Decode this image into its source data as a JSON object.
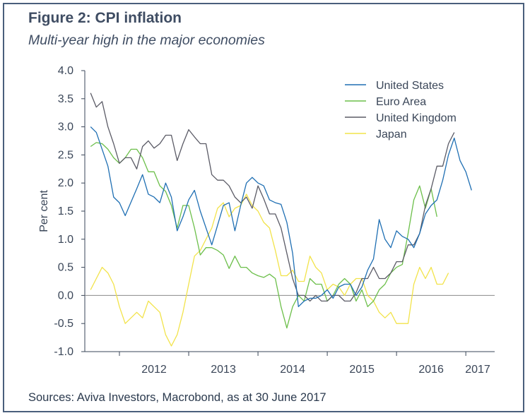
{
  "title": "Figure 2: CPI inflation",
  "subtitle": "Multi-year high in the major economies",
  "source": "Sources: Aviva Investors, Macrobond, as at 30 June 2017",
  "colors": {
    "frame": "#4a5f7c",
    "united_states": "#1f6fb3",
    "euro_area": "#6cbf4a",
    "united_kingdom": "#5b5b66",
    "japan": "#f2e34a",
    "zero_line": "#8a8a8a",
    "axis": "#3a4658"
  },
  "chart_data": {
    "type": "line",
    "xlabel": "",
    "ylabel": "Per cent",
    "ylim": [
      -1.0,
      4.0
    ],
    "yticks": [
      "4.0",
      "3.5",
      "3.0",
      "2.5",
      "2.0",
      "1.5",
      "1.0",
      "0.5",
      "0.0",
      "-0.5",
      "-1.0"
    ],
    "xticks": [
      "2012",
      "2013",
      "2014",
      "2015",
      "2016",
      "2017"
    ],
    "xlim": [
      "2011-07",
      "2017-06"
    ],
    "legend_position": "top-right",
    "zero_line": true,
    "grid": false,
    "series": [
      {
        "name": "United States",
        "color": "#1f6fb3",
        "points": [
          [
            "2011-08",
            3.0
          ],
          [
            "2011-09",
            2.9
          ],
          [
            "2011-11",
            2.3
          ],
          [
            "2011-12",
            1.75
          ],
          [
            "2012-01",
            1.65
          ],
          [
            "2012-02",
            1.42
          ],
          [
            "2012-04",
            1.9
          ],
          [
            "2012-05",
            2.15
          ],
          [
            "2012-06",
            1.8
          ],
          [
            "2012-07",
            1.75
          ],
          [
            "2012-08",
            1.65
          ],
          [
            "2012-09",
            2.0
          ],
          [
            "2012-10",
            1.75
          ],
          [
            "2012-11",
            1.15
          ],
          [
            "2012-12",
            1.4
          ],
          [
            "2013-01",
            1.7
          ],
          [
            "2013-02",
            1.87
          ],
          [
            "2013-03",
            1.5
          ],
          [
            "2013-05",
            0.9
          ],
          [
            "2013-06",
            1.25
          ],
          [
            "2013-07",
            1.6
          ],
          [
            "2013-08",
            1.65
          ],
          [
            "2013-09",
            1.15
          ],
          [
            "2013-10",
            1.6
          ],
          [
            "2013-11",
            2.0
          ],
          [
            "2013-12",
            2.1
          ],
          [
            "2014-01",
            2.0
          ],
          [
            "2014-02",
            1.95
          ],
          [
            "2014-03",
            1.7
          ],
          [
            "2014-04",
            1.65
          ],
          [
            "2014-05",
            1.62
          ],
          [
            "2014-06",
            1.3
          ],
          [
            "2014-07",
            0.75
          ],
          [
            "2014-08",
            -0.2
          ],
          [
            "2014-09",
            -0.1
          ],
          [
            "2014-10",
            -0.05
          ],
          [
            "2014-11",
            -0.05
          ],
          [
            "2014-12",
            0.0
          ],
          [
            "2015-01",
            0.1
          ],
          [
            "2015-02",
            -0.05
          ],
          [
            "2015-03",
            0.15
          ],
          [
            "2015-04",
            0.2
          ],
          [
            "2015-05",
            0.2
          ],
          [
            "2015-06",
            0.0
          ],
          [
            "2015-07",
            0.15
          ],
          [
            "2015-08",
            0.45
          ],
          [
            "2015-09",
            0.65
          ],
          [
            "2015-10",
            1.35
          ],
          [
            "2015-11",
            1.0
          ],
          [
            "2015-12",
            0.85
          ],
          [
            "2016-01",
            1.15
          ],
          [
            "2016-02",
            1.05
          ],
          [
            "2016-03",
            1.0
          ],
          [
            "2016-04",
            0.85
          ],
          [
            "2016-05",
            1.1
          ],
          [
            "2016-06",
            1.45
          ],
          [
            "2016-07",
            1.6
          ],
          [
            "2016-08",
            1.7
          ],
          [
            "2016-09",
            2.05
          ],
          [
            "2016-10",
            2.5
          ],
          [
            "2016-11",
            2.8
          ],
          [
            "2016-12",
            2.4
          ],
          [
            "2017-01",
            2.2
          ],
          [
            "2017-02",
            1.87
          ]
        ]
      },
      {
        "name": "Euro Area",
        "color": "#6cbf4a",
        "points": [
          [
            "2011-08",
            2.65
          ],
          [
            "2011-09",
            2.72
          ],
          [
            "2011-10",
            2.7
          ],
          [
            "2011-11",
            2.6
          ],
          [
            "2011-12",
            2.45
          ],
          [
            "2012-01",
            2.35
          ],
          [
            "2012-02",
            2.45
          ],
          [
            "2012-03",
            2.6
          ],
          [
            "2012-04",
            2.6
          ],
          [
            "2012-05",
            2.45
          ],
          [
            "2012-06",
            2.2
          ],
          [
            "2012-07",
            2.2
          ],
          [
            "2012-08",
            1.95
          ],
          [
            "2012-09",
            1.85
          ],
          [
            "2012-10",
            1.6
          ],
          [
            "2012-11",
            1.2
          ],
          [
            "2012-12",
            1.6
          ],
          [
            "2013-01",
            1.6
          ],
          [
            "2013-02",
            1.2
          ],
          [
            "2013-03",
            0.72
          ],
          [
            "2013-04",
            0.85
          ],
          [
            "2013-05",
            0.85
          ],
          [
            "2013-06",
            0.8
          ],
          [
            "2013-07",
            0.72
          ],
          [
            "2013-08",
            0.48
          ],
          [
            "2013-09",
            0.7
          ],
          [
            "2013-10",
            0.5
          ],
          [
            "2013-11",
            0.5
          ],
          [
            "2013-12",
            0.4
          ],
          [
            "2014-01",
            0.35
          ],
          [
            "2014-02",
            0.32
          ],
          [
            "2014-03",
            0.38
          ],
          [
            "2014-04",
            0.3
          ],
          [
            "2014-05",
            -0.2
          ],
          [
            "2014-06",
            -0.58
          ],
          [
            "2014-07",
            -0.2
          ],
          [
            "2014-08",
            0.0
          ],
          [
            "2014-09",
            -0.1
          ],
          [
            "2014-10",
            0.3
          ],
          [
            "2014-11",
            0.2
          ],
          [
            "2014-12",
            0.2
          ],
          [
            "2015-01",
            -0.1
          ],
          [
            "2015-02",
            0.0
          ],
          [
            "2015-03",
            0.2
          ],
          [
            "2015-04",
            0.3
          ],
          [
            "2015-05",
            0.2
          ],
          [
            "2015-06",
            -0.1
          ],
          [
            "2015-07",
            0.1
          ],
          [
            "2015-08",
            -0.2
          ],
          [
            "2015-09",
            -0.1
          ],
          [
            "2015-10",
            0.1
          ],
          [
            "2015-11",
            0.2
          ],
          [
            "2015-12",
            0.4
          ],
          [
            "2016-01",
            0.5
          ],
          [
            "2016-02",
            0.55
          ],
          [
            "2016-03",
            1.1
          ],
          [
            "2016-04",
            1.7
          ],
          [
            "2016-05",
            1.95
          ],
          [
            "2016-06",
            1.55
          ],
          [
            "2016-07",
            1.9
          ],
          [
            "2016-08",
            1.4
          ]
        ]
      },
      {
        "name": "United Kingdom",
        "color": "#5b5b66",
        "points": [
          [
            "2011-08",
            3.6
          ],
          [
            "2011-09",
            3.35
          ],
          [
            "2011-10",
            3.45
          ],
          [
            "2011-11",
            3.0
          ],
          [
            "2011-12",
            2.7
          ],
          [
            "2012-01",
            2.35
          ],
          [
            "2012-02",
            2.45
          ],
          [
            "2012-03",
            2.45
          ],
          [
            "2012-04",
            2.25
          ],
          [
            "2012-05",
            2.65
          ],
          [
            "2012-06",
            2.75
          ],
          [
            "2012-07",
            2.62
          ],
          [
            "2012-08",
            2.7
          ],
          [
            "2012-09",
            2.85
          ],
          [
            "2012-10",
            2.85
          ],
          [
            "2012-11",
            2.4
          ],
          [
            "2012-12",
            2.7
          ],
          [
            "2013-01",
            2.95
          ],
          [
            "2013-02",
            2.82
          ],
          [
            "2013-03",
            2.7
          ],
          [
            "2013-04",
            2.7
          ],
          [
            "2013-05",
            2.15
          ],
          [
            "2013-06",
            2.05
          ],
          [
            "2013-07",
            2.05
          ],
          [
            "2013-08",
            1.95
          ],
          [
            "2013-09",
            1.75
          ],
          [
            "2013-10",
            1.65
          ],
          [
            "2013-11",
            1.75
          ],
          [
            "2013-12",
            1.55
          ],
          [
            "2014-01",
            1.95
          ],
          [
            "2014-02",
            1.72
          ],
          [
            "2014-03",
            1.45
          ],
          [
            "2014-04",
            1.45
          ],
          [
            "2014-05",
            1.2
          ],
          [
            "2014-06",
            0.75
          ],
          [
            "2014-07",
            0.3
          ],
          [
            "2014-08",
            0.0
          ],
          [
            "2014-09",
            0.0
          ],
          [
            "2014-10",
            -0.1
          ],
          [
            "2014-11",
            0.0
          ],
          [
            "2014-12",
            -0.1
          ],
          [
            "2015-01",
            -0.1
          ],
          [
            "2015-02",
            0.0
          ],
          [
            "2015-03",
            0.0
          ],
          [
            "2015-04",
            -0.1
          ],
          [
            "2015-05",
            -0.1
          ],
          [
            "2015-06",
            0.05
          ],
          [
            "2015-07",
            0.3
          ],
          [
            "2015-08",
            0.3
          ],
          [
            "2015-09",
            0.5
          ],
          [
            "2015-10",
            0.3
          ],
          [
            "2015-11",
            0.3
          ],
          [
            "2015-12",
            0.4
          ],
          [
            "2016-01",
            0.6
          ],
          [
            "2016-02",
            0.6
          ],
          [
            "2016-03",
            0.9
          ],
          [
            "2016-04",
            0.9
          ],
          [
            "2016-05",
            1.1
          ],
          [
            "2016-06",
            1.6
          ],
          [
            "2016-07",
            1.9
          ],
          [
            "2016-08",
            2.3
          ],
          [
            "2016-09",
            2.3
          ],
          [
            "2016-10",
            2.7
          ],
          [
            "2016-11",
            2.9
          ]
        ]
      },
      {
        "name": "Japan",
        "color": "#f2e34a",
        "points": [
          [
            "2011-08",
            0.1
          ],
          [
            "2011-09",
            0.3
          ],
          [
            "2011-10",
            0.5
          ],
          [
            "2011-11",
            0.4
          ],
          [
            "2011-12",
            0.2
          ],
          [
            "2012-01",
            -0.2
          ],
          [
            "2012-02",
            -0.5
          ],
          [
            "2012-03",
            -0.4
          ],
          [
            "2012-04",
            -0.3
          ],
          [
            "2012-05",
            -0.4
          ],
          [
            "2012-06",
            -0.1
          ],
          [
            "2012-07",
            -0.2
          ],
          [
            "2012-08",
            -0.3
          ],
          [
            "2012-09",
            -0.7
          ],
          [
            "2012-10",
            -0.9
          ],
          [
            "2012-11",
            -0.7
          ],
          [
            "2012-12",
            -0.3
          ],
          [
            "2013-01",
            0.2
          ],
          [
            "2013-02",
            0.7
          ],
          [
            "2013-03",
            0.8
          ],
          [
            "2013-04",
            1.0
          ],
          [
            "2013-05",
            1.2
          ],
          [
            "2013-06",
            1.55
          ],
          [
            "2013-07",
            1.65
          ],
          [
            "2013-08",
            1.4
          ],
          [
            "2013-09",
            1.55
          ],
          [
            "2013-10",
            1.6
          ],
          [
            "2013-11",
            1.8
          ],
          [
            "2013-12",
            1.6
          ],
          [
            "2014-01",
            1.5
          ],
          [
            "2014-02",
            1.3
          ],
          [
            "2014-03",
            1.2
          ],
          [
            "2014-04",
            0.8
          ],
          [
            "2014-05",
            0.35
          ],
          [
            "2014-06",
            0.35
          ],
          [
            "2014-07",
            0.45
          ],
          [
            "2014-08",
            0.25
          ],
          [
            "2014-09",
            0.25
          ],
          [
            "2014-10",
            0.7
          ],
          [
            "2014-11",
            0.5
          ],
          [
            "2014-12",
            0.4
          ],
          [
            "2015-01",
            0.1
          ],
          [
            "2015-02",
            0.2
          ],
          [
            "2015-03",
            0.15
          ],
          [
            "2015-04",
            0.0
          ],
          [
            "2015-05",
            0.2
          ],
          [
            "2015-06",
            0.3
          ],
          [
            "2015-07",
            0.3
          ],
          [
            "2015-08",
            0.0
          ],
          [
            "2015-09",
            -0.1
          ],
          [
            "2015-10",
            -0.3
          ],
          [
            "2015-11",
            -0.4
          ],
          [
            "2015-12",
            -0.3
          ],
          [
            "2016-01",
            -0.5
          ],
          [
            "2016-02",
            -0.5
          ],
          [
            "2016-03",
            -0.5
          ],
          [
            "2016-04",
            0.2
          ],
          [
            "2016-05",
            0.5
          ],
          [
            "2016-06",
            0.3
          ],
          [
            "2016-07",
            0.5
          ],
          [
            "2016-08",
            0.2
          ],
          [
            "2016-09",
            0.2
          ],
          [
            "2016-10",
            0.4
          ]
        ]
      }
    ]
  }
}
